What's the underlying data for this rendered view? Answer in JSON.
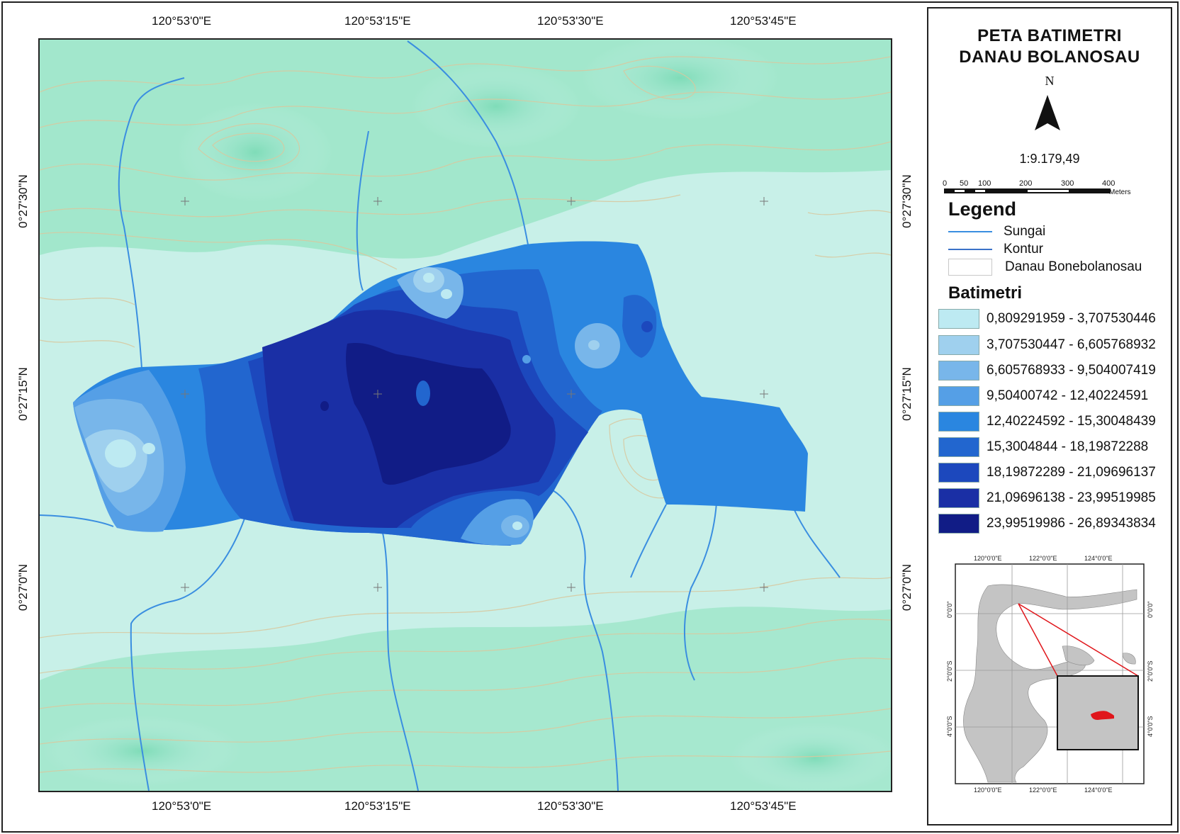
{
  "title_line1": "PETA BATIMETRI",
  "title_line2": "DANAU BOLANOSAU",
  "north_label": "N",
  "scale_ratio": "1:9.179,49",
  "scalebar": {
    "ticks": [
      "0",
      "50",
      "100",
      "200",
      "300",
      "400"
    ],
    "unit": "Meters"
  },
  "top_coords": [
    "120°53'0\"E",
    "120°53'15\"E",
    "120°53'30\"E",
    "120°53'45\"E"
  ],
  "bottom_coords": [
    "120°53'0\"E",
    "120°53'15\"E",
    "120°53'30\"E",
    "120°53'45\"E"
  ],
  "left_coords": [
    "0°27'30\"N",
    "0°27'15\"N",
    "0°27'0\"N"
  ],
  "right_coords": [
    "0°27'30\"N",
    "0°27'15\"N",
    "0°27'0\"N"
  ],
  "legend": {
    "heading": "Legend",
    "items": [
      {
        "label": "Sungai",
        "symbol": "line",
        "color": "#3a8ee0"
      },
      {
        "label": "Kontur",
        "symbol": "line",
        "color": "#3a72c8"
      },
      {
        "label": "Danau Bonebolanosau",
        "symbol": "box",
        "color": "#ffffff"
      }
    ]
  },
  "batimetri": {
    "heading": "Batimetri",
    "classes": [
      {
        "label": "0,809291959 - 3,707530446",
        "color": "#bdeaf2"
      },
      {
        "label": "3,707530447 - 6,605768932",
        "color": "#9fd0ee"
      },
      {
        "label": "6,605768933 - 9,504007419",
        "color": "#78b6ea"
      },
      {
        "label": "9,50400742 - 12,40224591",
        "color": "#559fe6"
      },
      {
        "label": "12,40224592 - 15,30048439",
        "color": "#2a86e0"
      },
      {
        "label": "15,3004844 - 18,19872288",
        "color": "#2266cf"
      },
      {
        "label": "18,19872289 - 21,09696137",
        "color": "#1c48bd"
      },
      {
        "label": "21,09696138 - 23,99519985",
        "color": "#1a2fa5"
      },
      {
        "label": "23,99519986 - 26,89343834",
        "color": "#111c86"
      }
    ]
  },
  "inset": {
    "top_coords": [
      "120°0'0\"E",
      "122°0'0\"E",
      "124°0'0\"E"
    ],
    "bottom_coords": [
      "120°0'0\"E",
      "122°0'0\"E",
      "124°0'0\"E"
    ],
    "left_coords": [
      "0°0'0\"",
      "2°0'0\"S",
      "4°0'0\"S"
    ],
    "right_coords": [
      "0°0'0\"",
      "2°0'0\"S",
      "4°0'0\"S"
    ]
  },
  "colors": {
    "land_light": "#c8f0e8",
    "land_green": "#95e3c3",
    "contour_line": "#d8c9a0",
    "river": "#3a8ee0",
    "inset_land": "#c4c4c4",
    "inset_highlight": "#e0161b"
  }
}
